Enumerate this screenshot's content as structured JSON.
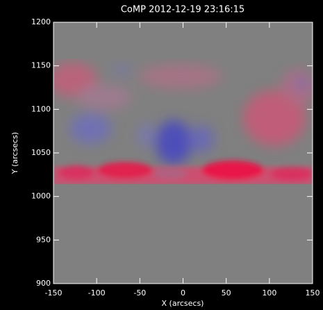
{
  "chart_data": {
    "type": "image",
    "title": "CoMP 2012-12-19 23:16:15",
    "x_label": "X (arcsecs)",
    "y_label": "Y (arcsecs)",
    "xlim": [
      -150,
      150
    ],
    "ylim": [
      900,
      1200
    ],
    "xticks": [
      -150,
      -100,
      -50,
      0,
      50,
      100,
      150
    ],
    "yticks": [
      900,
      950,
      1000,
      1050,
      1100,
      1150,
      1200
    ]
  }
}
